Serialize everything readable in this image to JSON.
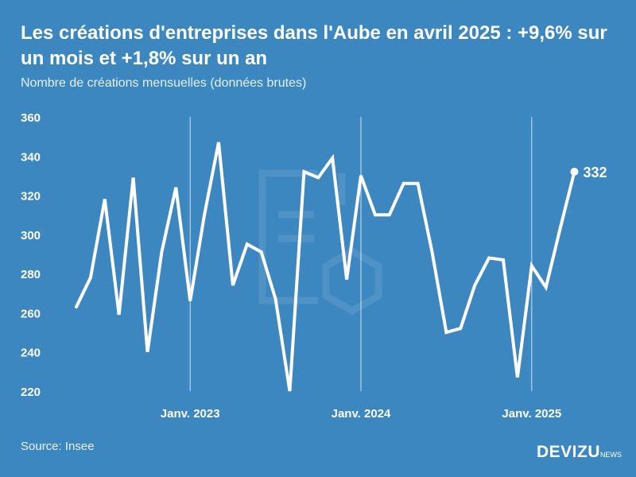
{
  "title": "Les créations d'entreprises dans l'Aube en avril 2025 : +9,6% sur un mois et +1,8% sur un an",
  "subtitle": "Nombre de créations mensuelles (données brutes)",
  "source": "Source: Insee",
  "brand": {
    "name": "DEVIZU",
    "suffix": "NEWS"
  },
  "colors": {
    "background": "#3d87c0",
    "line": "#ffffff",
    "text": "#ffffff"
  },
  "chart_data": {
    "type": "line",
    "title": "Les créations d'entreprises dans l'Aube en avril 2025 : +9,6% sur un mois et +1,8% sur un an",
    "subtitle": "Nombre de créations mensuelles (données brutes)",
    "xlabel": "",
    "ylabel": "",
    "ylim": [
      220,
      360
    ],
    "yticks": [
      220,
      240,
      260,
      280,
      300,
      320,
      340,
      360
    ],
    "x_start": "2022-05",
    "x": [
      "2022-05",
      "2022-06",
      "2022-07",
      "2022-08",
      "2022-09",
      "2022-10",
      "2022-11",
      "2022-12",
      "2023-01",
      "2023-02",
      "2023-03",
      "2023-04",
      "2023-05",
      "2023-06",
      "2023-07",
      "2023-08",
      "2023-09",
      "2023-10",
      "2023-11",
      "2023-12",
      "2024-01",
      "2024-02",
      "2024-03",
      "2024-04",
      "2024-05",
      "2024-06",
      "2024-07",
      "2024-08",
      "2024-09",
      "2024-10",
      "2024-11",
      "2024-12",
      "2025-01",
      "2025-02",
      "2025-03",
      "2025-04"
    ],
    "xticks": [
      {
        "x": "2023-01",
        "label": "Janv. 2023"
      },
      {
        "x": "2024-01",
        "label": "Janv. 2024"
      },
      {
        "x": "2025-01",
        "label": "Janv. 2025"
      }
    ],
    "values": [
      263,
      278,
      318,
      259,
      329,
      240,
      291,
      324,
      266,
      310,
      347,
      274,
      295,
      291,
      267,
      220,
      332,
      329,
      339,
      277,
      330,
      310,
      310,
      326,
      326,
      291,
      250,
      252,
      274,
      288,
      287,
      227,
      284,
      273,
      303,
      332
    ],
    "end_label": "332",
    "grid": "vertical lines at January",
    "legend": "none"
  }
}
